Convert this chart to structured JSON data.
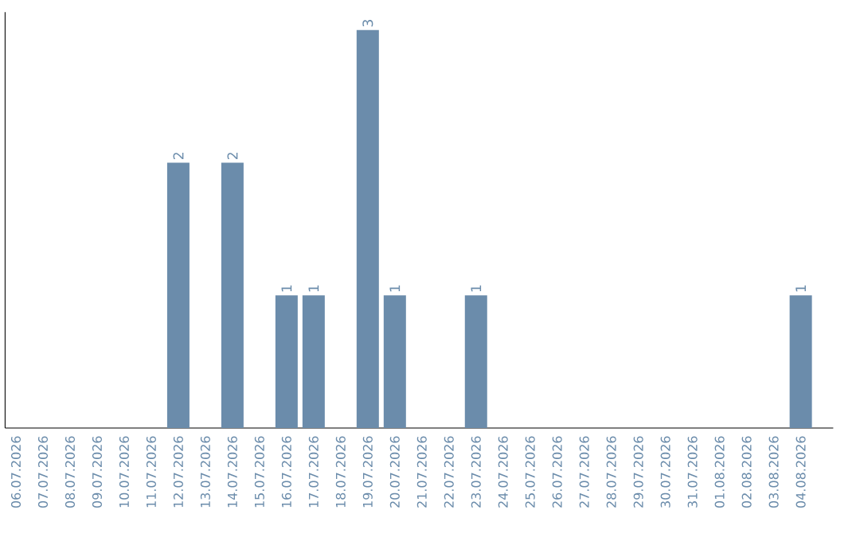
{
  "chart_data": {
    "type": "bar",
    "categories": [
      "06.07.2026",
      "07.07.2026",
      "08.07.2026",
      "09.07.2026",
      "10.07.2026",
      "11.07.2026",
      "12.07.2026",
      "13.07.2026",
      "14.07.2026",
      "15.07.2026",
      "16.07.2026",
      "17.07.2026",
      "18.07.2026",
      "19.07.2026",
      "20.07.2026",
      "21.07.2026",
      "22.07.2026",
      "23.07.2026",
      "24.07.2026",
      "25.07.2026",
      "26.07.2026",
      "27.07.2026",
      "28.07.2026",
      "29.07.2026",
      "30.07.2026",
      "31.07.2026",
      "01.08.2026",
      "02.08.2026",
      "03.08.2026",
      "04.08.2026"
    ],
    "values": [
      0,
      0,
      0,
      0,
      0,
      0,
      2,
      0,
      2,
      0,
      1,
      1,
      0,
      3,
      1,
      0,
      0,
      1,
      0,
      0,
      0,
      0,
      0,
      0,
      0,
      0,
      0,
      0,
      0,
      1
    ],
    "value_labels": [
      null,
      null,
      null,
      null,
      null,
      null,
      "2",
      null,
      "2",
      null,
      "1",
      "1",
      null,
      "3",
      "1",
      null,
      null,
      "1",
      null,
      null,
      null,
      null,
      null,
      null,
      null,
      null,
      null,
      null,
      null,
      "1"
    ],
    "color": "#6b8cab",
    "tick_labels": "x"
  }
}
